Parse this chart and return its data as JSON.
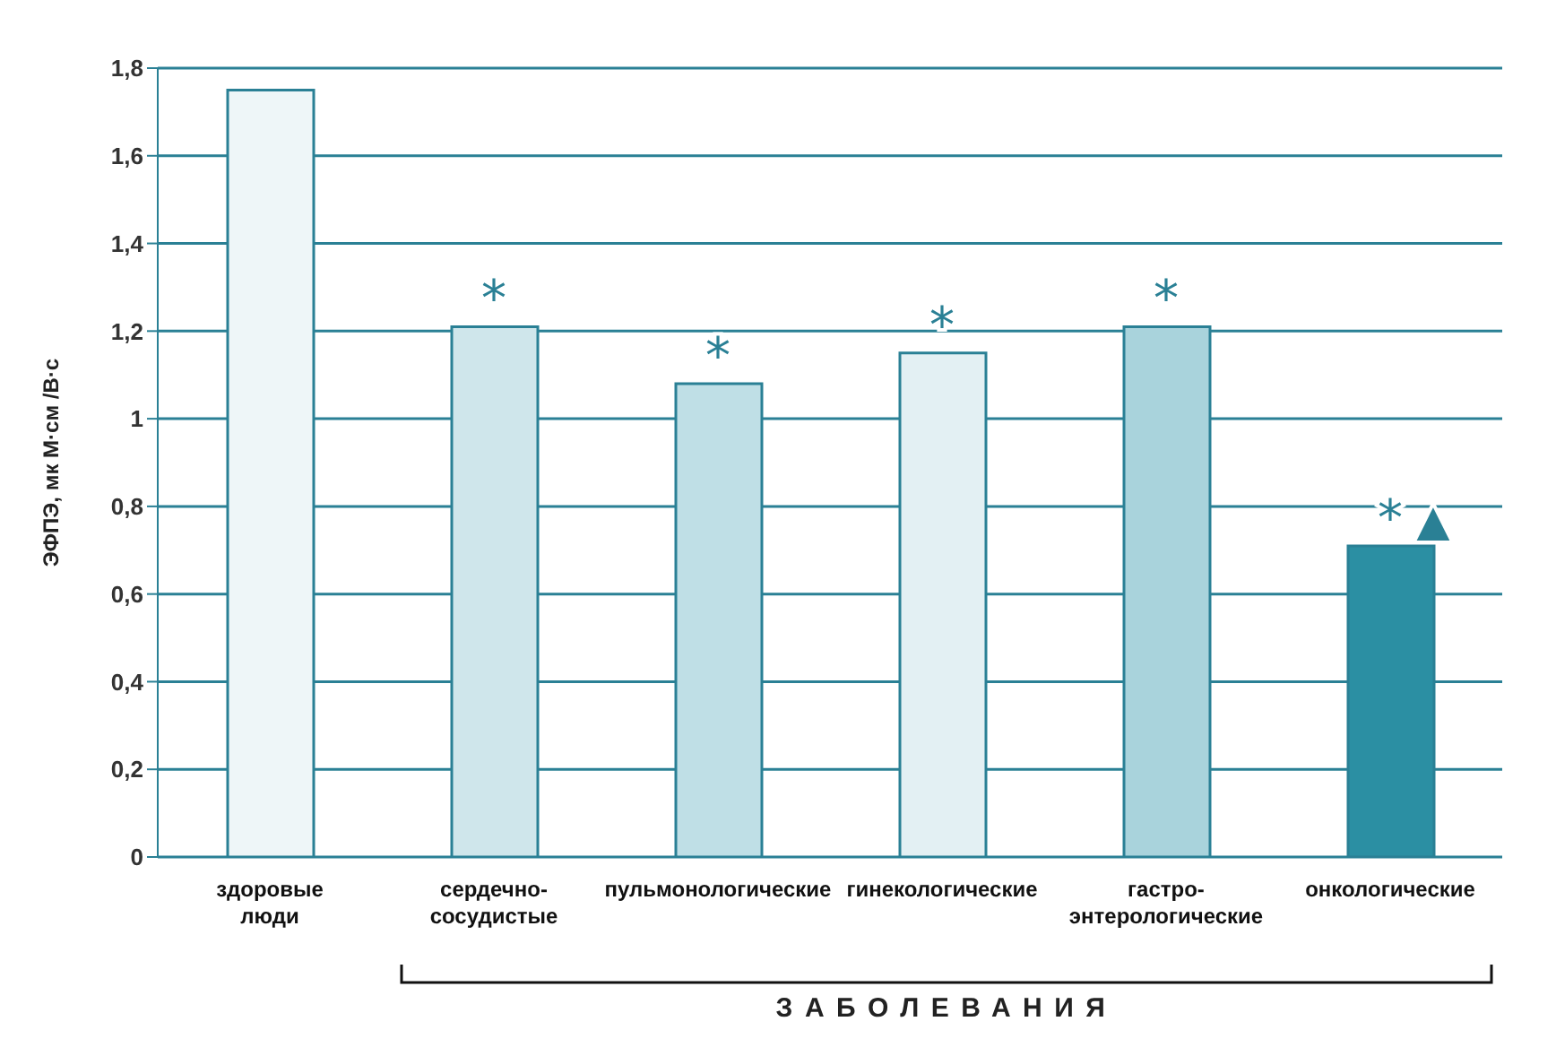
{
  "chart_data": {
    "type": "bar",
    "ylabel": "ЭФПЭ, мк М·см /В·с",
    "xlabel": "ЗАБОЛЕВАНИЯ",
    "categories": [
      "здоровые\nлюди",
      "сердечно-\nсосудистые",
      "пульмонологические",
      "гинекологические",
      "гастро-\nэнтерологические",
      "онкологические"
    ],
    "values": [
      1.75,
      1.21,
      1.08,
      1.15,
      1.21,
      0.71
    ],
    "colors": [
      "#eef6f8",
      "#cfe6eb",
      "#bfdfe6",
      "#e3f0f3",
      "#a9d3dc",
      "#2b8fa3"
    ],
    "ylim": [
      0,
      1.8
    ],
    "yticks": [
      0,
      {
        "value": 0.2,
        "label": "0,2"
      },
      {
        "value": 0.4,
        "label": "0,4"
      },
      {
        "value": 0.6,
        "label": "0,6"
      },
      {
        "value": 0.8,
        "label": "0,8"
      },
      1,
      {
        "value": 1.2,
        "label": "1,2"
      },
      {
        "value": 1.4,
        "label": "1,4"
      },
      {
        "value": 1.6,
        "label": "1,6"
      },
      {
        "value": 1.8,
        "label": "1,8"
      }
    ],
    "grid": "y",
    "annotations": [
      {
        "text": "*",
        "x": "сердечно-\nсосудистые",
        "y": 1.21
      },
      {
        "text": "*",
        "x": "пульмонологические",
        "y": 1.08
      },
      {
        "text": "*",
        "x": "гинекологические",
        "y": 1.15
      },
      {
        "text": "*",
        "x": "гастро-\nэнтерологические",
        "y": 1.21
      },
      {
        "text": "*",
        "x": "онкологические",
        "y": 0.71
      },
      {
        "text": "▲",
        "x": "онкологические",
        "y": 0.71
      }
    ]
  }
}
